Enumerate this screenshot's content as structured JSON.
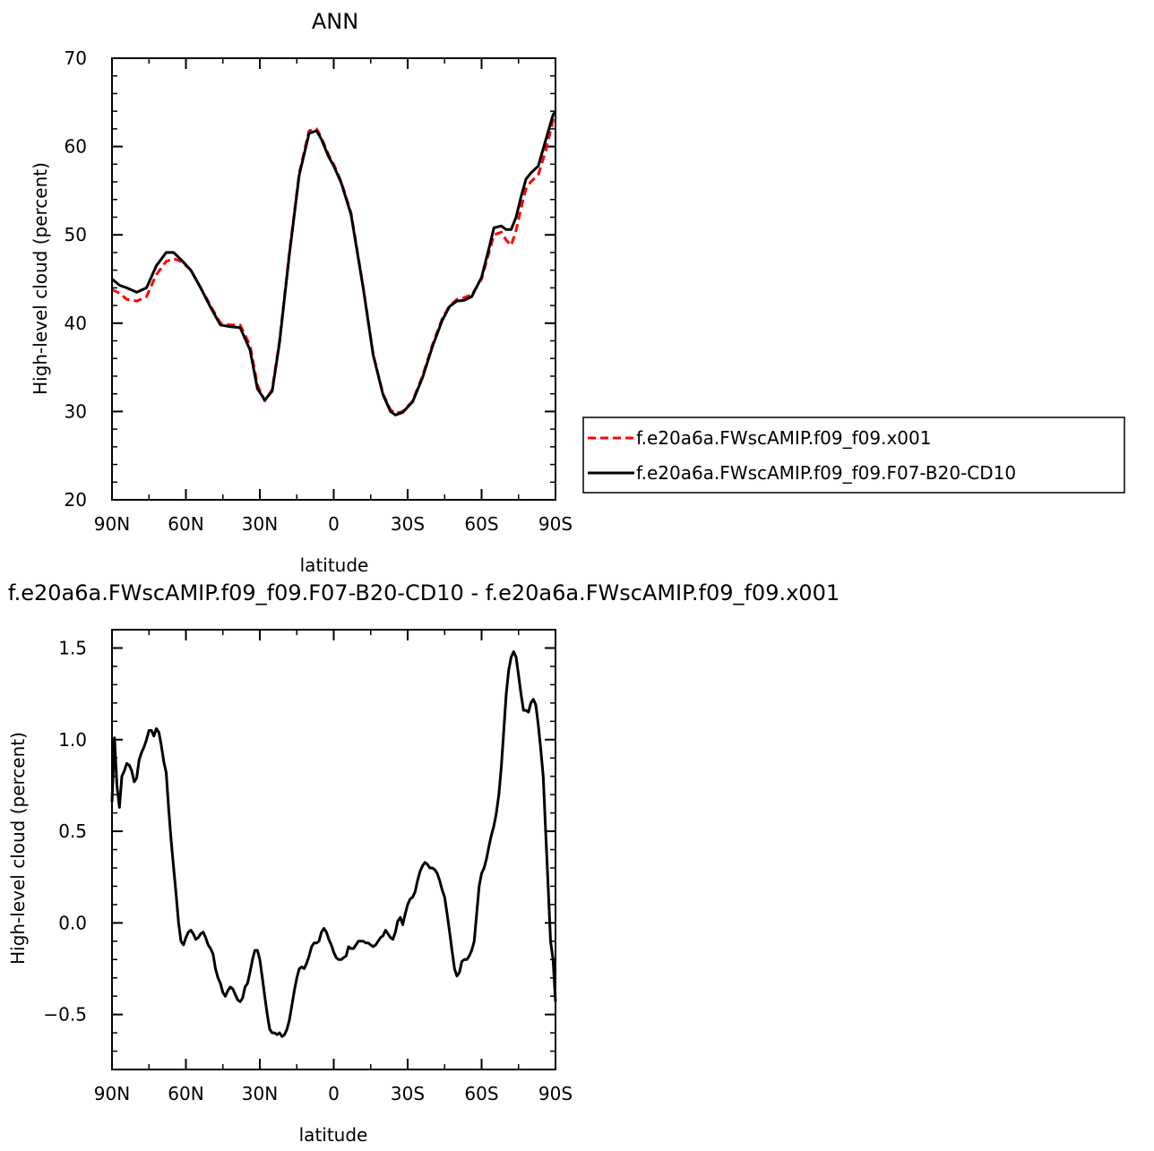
{
  "chart_data": [
    {
      "type": "line",
      "title": "ANN",
      "xlabel": "latitude",
      "ylabel": "High-level cloud (percent)",
      "xlim": [
        90,
        -90
      ],
      "ylim": [
        20,
        70
      ],
      "xticks": [
        90,
        60,
        30,
        0,
        -30,
        -60,
        -90
      ],
      "xtick_labels": [
        "90N",
        "60N",
        "30N",
        "0",
        "30S",
        "60S",
        "90S"
      ],
      "yticks": [
        20,
        30,
        40,
        50,
        60,
        70
      ],
      "ytick_labels": [
        "20",
        "30",
        "40",
        "50",
        "60",
        "70"
      ],
      "grid": false,
      "legend_position": "right",
      "series": [
        {
          "name": "f.e20a6a.FWscAMIP.f09_f09.x001",
          "color": "#ff0000",
          "dash": "dashed",
          "x": [
            90,
            87,
            84,
            80,
            76,
            72,
            68,
            65,
            62,
            58,
            54,
            50,
            46,
            42,
            38,
            34,
            31,
            28,
            25,
            22,
            18,
            14,
            10,
            7,
            5,
            2,
            0,
            -3,
            -7,
            -12,
            -16,
            -20,
            -23,
            -25,
            -28,
            -32,
            -36,
            -40,
            -44,
            -47,
            -50,
            -53,
            -56,
            -60,
            -63,
            -65,
            -68,
            -70,
            -72,
            -74,
            -76,
            -78,
            -80,
            -83,
            -86,
            -89,
            -90
          ],
          "y": [
            43.8,
            43.4,
            42.7,
            42.5,
            43.0,
            45.5,
            47.0,
            47.3,
            47.0,
            46.0,
            44.0,
            42.0,
            40.0,
            39.8,
            39.8,
            37.5,
            33.0,
            31.2,
            32.5,
            38.0,
            48.0,
            57.0,
            61.8,
            62.0,
            61.0,
            59.0,
            58.0,
            56.0,
            52.5,
            44.0,
            36.5,
            32.0,
            30.2,
            29.8,
            30.0,
            31.2,
            34.0,
            37.5,
            40.5,
            42.0,
            42.7,
            42.9,
            43.2,
            45.0,
            48.0,
            50.0,
            50.3,
            49.4,
            48.8,
            50.5,
            53.0,
            55.2,
            56.0,
            56.8,
            59.5,
            63.0,
            64.0
          ]
        },
        {
          "name": "f.e20a6a.FWscAMIP.f09_f09.F07-B20-CD10",
          "color": "#000000",
          "dash": "solid",
          "x": [
            90,
            87,
            84,
            80,
            76,
            72,
            68,
            65,
            62,
            58,
            54,
            50,
            46,
            42,
            38,
            34,
            31,
            28,
            25,
            22,
            18,
            14,
            10,
            7,
            5,
            2,
            0,
            -3,
            -7,
            -12,
            -16,
            -20,
            -23,
            -25,
            -28,
            -32,
            -36,
            -40,
            -44,
            -47,
            -50,
            -53,
            -56,
            -60,
            -63,
            -65,
            -68,
            -70,
            -72,
            -74,
            -76,
            -78,
            -80,
            -83,
            -86,
            -89,
            -90
          ],
          "y": [
            45.0,
            44.3,
            44.0,
            43.5,
            44.0,
            46.5,
            48.0,
            48.0,
            47.2,
            46.0,
            44.0,
            41.8,
            39.8,
            39.6,
            39.5,
            37.0,
            32.6,
            31.3,
            32.3,
            37.8,
            47.8,
            56.8,
            61.5,
            61.8,
            60.8,
            58.8,
            57.8,
            55.9,
            52.3,
            43.9,
            36.4,
            31.9,
            30.0,
            29.6,
            29.9,
            31.1,
            33.8,
            37.3,
            40.3,
            41.9,
            42.5,
            42.6,
            43.0,
            45.2,
            48.5,
            50.8,
            51.0,
            50.6,
            50.6,
            52.0,
            54.3,
            56.3,
            57.0,
            57.8,
            60.7,
            63.6,
            64.0
          ]
        }
      ]
    },
    {
      "type": "line",
      "title": "f.e20a6a.FWscAMIP.f09_f09.F07-B20-CD10  -  f.e20a6a.FWscAMIP.f09_f09.x001",
      "xlabel": "latitude",
      "ylabel": "High-level cloud (percent)",
      "xlim": [
        90,
        -90
      ],
      "ylim": [
        -0.8,
        1.6
      ],
      "xticks": [
        90,
        60,
        30,
        0,
        -30,
        -60,
        -90
      ],
      "xtick_labels": [
        "90N",
        "60N",
        "30N",
        "0",
        "30S",
        "60S",
        "90S"
      ],
      "yticks": [
        -0.5,
        0.0,
        0.5,
        1.0,
        1.5
      ],
      "ytick_labels": [
        "−0.5",
        "0.0",
        "0.5",
        "1.0",
        "1.5"
      ],
      "grid": false,
      "series": [
        {
          "color": "#000000",
          "dash": "solid",
          "x": [
            90,
            89,
            88,
            87,
            86,
            85,
            84,
            83,
            82,
            81,
            80,
            79,
            78,
            77,
            76,
            75,
            74,
            73,
            72,
            71,
            70,
            69,
            68,
            67,
            66,
            65,
            64,
            63,
            62,
            61,
            60,
            59,
            58,
            57,
            56,
            55,
            54,
            53,
            52,
            51,
            50,
            49,
            48,
            47,
            46,
            45,
            44,
            43,
            42,
            41,
            40,
            39,
            38,
            37,
            36,
            35,
            34,
            33,
            32,
            31,
            30,
            29,
            28,
            27,
            26,
            25,
            24,
            23,
            22,
            21,
            20,
            19,
            18,
            17,
            16,
            15,
            14,
            13,
            12,
            11,
            10,
            9,
            8,
            7,
            6,
            5,
            4,
            3,
            2,
            1,
            0,
            -1,
            -2,
            -3,
            -4,
            -5,
            -6,
            -7,
            -8,
            -9,
            -10,
            -11,
            -12,
            -13,
            -14,
            -15,
            -16,
            -17,
            -18,
            -19,
            -20,
            -21,
            -22,
            -23,
            -24,
            -25,
            -26,
            -27,
            -28,
            -29,
            -30,
            -31,
            -32,
            -33,
            -34,
            -35,
            -36,
            -37,
            -38,
            -39,
            -40,
            -41,
            -42,
            -43,
            -44,
            -45,
            -46,
            -47,
            -48,
            -49,
            -50,
            -51,
            -52,
            -53,
            -54,
            -55,
            -56,
            -57,
            -58,
            -59,
            -60,
            -61,
            -62,
            -63,
            -64,
            -65,
            -66,
            -67,
            -68,
            -69,
            -70,
            -71,
            -72,
            -73,
            -74,
            -75,
            -76,
            -77,
            -78,
            -79,
            -80,
            -81,
            -82,
            -83,
            -84,
            -85,
            -86,
            -87,
            -88,
            -89,
            -90
          ],
          "y": [
            0.66,
            1.01,
            0.75,
            0.63,
            0.8,
            0.83,
            0.87,
            0.86,
            0.83,
            0.77,
            0.79,
            0.89,
            0.93,
            0.96,
            1.0,
            1.05,
            1.05,
            1.02,
            1.06,
            1.04,
            0.97,
            0.88,
            0.82,
            0.62,
            0.45,
            0.3,
            0.16,
            0.0,
            -0.1,
            -0.12,
            -0.08,
            -0.05,
            -0.04,
            -0.06,
            -0.09,
            -0.08,
            -0.06,
            -0.05,
            -0.08,
            -0.12,
            -0.14,
            -0.17,
            -0.25,
            -0.3,
            -0.33,
            -0.38,
            -0.4,
            -0.37,
            -0.35,
            -0.36,
            -0.39,
            -0.42,
            -0.43,
            -0.41,
            -0.35,
            -0.33,
            -0.27,
            -0.2,
            -0.15,
            -0.15,
            -0.2,
            -0.3,
            -0.4,
            -0.5,
            -0.58,
            -0.6,
            -0.6,
            -0.61,
            -0.6,
            -0.62,
            -0.61,
            -0.58,
            -0.53,
            -0.45,
            -0.37,
            -0.3,
            -0.25,
            -0.24,
            -0.25,
            -0.22,
            -0.18,
            -0.13,
            -0.11,
            -0.11,
            -0.1,
            -0.05,
            -0.03,
            -0.05,
            -0.09,
            -0.12,
            -0.16,
            -0.19,
            -0.2,
            -0.2,
            -0.19,
            -0.18,
            -0.13,
            -0.14,
            -0.14,
            -0.12,
            -0.1,
            -0.1,
            -0.1,
            -0.11,
            -0.11,
            -0.12,
            -0.13,
            -0.12,
            -0.1,
            -0.08,
            -0.07,
            -0.04,
            -0.06,
            -0.08,
            -0.09,
            -0.05,
            0.01,
            0.03,
            -0.01,
            0.05,
            0.1,
            0.13,
            0.14,
            0.17,
            0.23,
            0.28,
            0.31,
            0.33,
            0.32,
            0.3,
            0.3,
            0.29,
            0.27,
            0.23,
            0.18,
            0.14,
            0.05,
            -0.05,
            -0.15,
            -0.25,
            -0.29,
            -0.27,
            -0.21,
            -0.2,
            -0.2,
            -0.18,
            -0.15,
            -0.1,
            0.05,
            0.2,
            0.27,
            0.3,
            0.35,
            0.42,
            0.48,
            0.53,
            0.6,
            0.7,
            0.85,
            1.05,
            1.25,
            1.38,
            1.45,
            1.48,
            1.45,
            1.35,
            1.25,
            1.16,
            1.16,
            1.15,
            1.2,
            1.22,
            1.19,
            1.08,
            0.95,
            0.8,
            0.5,
            0.2,
            -0.1,
            -0.2,
            -0.43
          ]
        }
      ]
    }
  ]
}
